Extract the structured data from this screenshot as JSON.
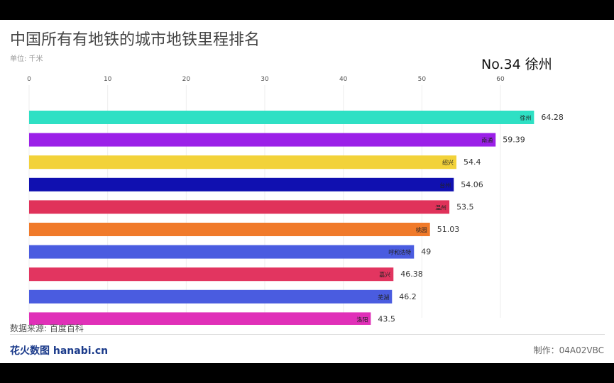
{
  "title": "中国所有有地铁的城市地铁里程排名",
  "unit": "单位: 千米",
  "rank_label": "No.34 徐州",
  "source": "数据来源: 百度百科",
  "logo": "花火数图 hanabi.cn",
  "credit": "制作：04A02VBC",
  "chart_data": {
    "type": "bar",
    "orientation": "horizontal",
    "xticks": [
      0,
      10,
      20,
      30,
      40,
      50,
      60
    ],
    "grid": true,
    "categories": [
      "徐州",
      "南通",
      "绍兴",
      "台州",
      "温州",
      "桃园",
      "呼和浩特",
      "嘉兴",
      "芜湖",
      "洛阳"
    ],
    "values": [
      64.28,
      59.39,
      54.4,
      54.06,
      53.5,
      51.03,
      49,
      46.38,
      46.2,
      43.5
    ],
    "value_labels": [
      "64.28",
      "59.39",
      "54.4",
      "54.06",
      "53.5",
      "51.03",
      "49",
      "46.38",
      "46.2",
      "43.5"
    ],
    "colors": [
      "#2ee0c4",
      "#9b20e8",
      "#f2d23a",
      "#1010b0",
      "#e0325a",
      "#f07a2a",
      "#4a5ce0",
      "#e23560",
      "#4a5ce0",
      "#e030b8"
    ]
  }
}
